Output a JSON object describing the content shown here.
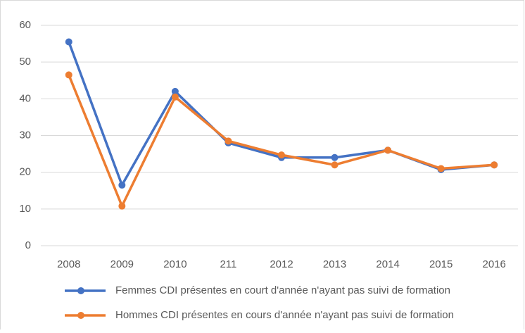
{
  "chart_data": {
    "type": "line",
    "categories": [
      "2008",
      "2009",
      "2010",
      "211",
      "2012",
      "2013",
      "2014",
      "2015",
      "2016"
    ],
    "series": [
      {
        "name": "Femmes CDI présentes en court d'année n'ayant pas suivi de formation",
        "color": "#4472c4",
        "values": [
          55.5,
          16.5,
          42,
          28,
          24,
          24,
          26,
          20.7,
          22
        ]
      },
      {
        "name": "Hommes CDI présentes en cours d'année n'ayant pas suivi de formation",
        "color": "#ed7d31",
        "values": [
          46.5,
          10.8,
          40.5,
          28.5,
          24.7,
          22,
          26,
          21,
          22
        ]
      }
    ],
    "ylim": [
      0,
      60
    ],
    "yticks": [
      0,
      10,
      20,
      30,
      40,
      50,
      60
    ],
    "grid": true,
    "legend": "bottom"
  }
}
